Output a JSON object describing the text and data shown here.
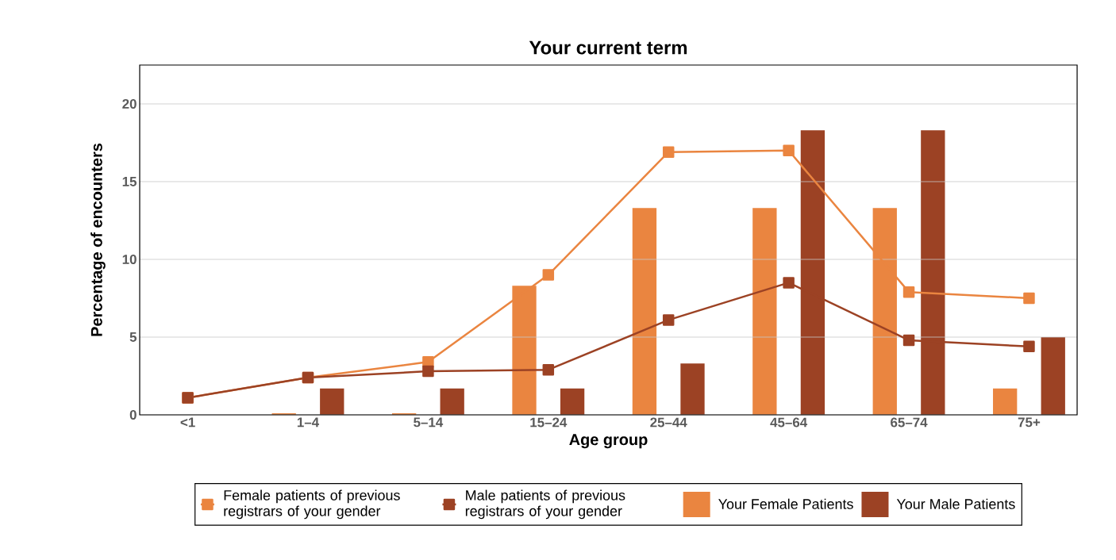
{
  "chart_data": {
    "type": "bar",
    "title": "Your current term",
    "xlabel": "Age group",
    "ylabel": "Percentage of encounters",
    "categories": [
      "<1",
      "1–4",
      "5–14",
      "15–24",
      "25–44",
      "45–64",
      "65–74",
      "75+"
    ],
    "series": [
      {
        "name": "Female patients of previous registrars of your gender",
        "type": "line",
        "color": "#ea8540",
        "values": [
          1.1,
          2.4,
          3.4,
          9.0,
          16.9,
          17.0,
          7.9,
          7.5
        ]
      },
      {
        "name": "Male patients of previous registrars of your gender",
        "type": "line",
        "color": "#9c4224",
        "values": [
          1.1,
          2.4,
          2.8,
          2.9,
          6.1,
          8.5,
          4.8,
          4.4
        ]
      },
      {
        "name": "Your Female Patients",
        "color": "#ea8540",
        "values": [
          0,
          0.1,
          0.1,
          8.3,
          13.3,
          13.3,
          13.3,
          1.7
        ]
      },
      {
        "name": "Your Male Patients",
        "color": "#9c4224",
        "values": [
          0,
          1.7,
          1.7,
          1.7,
          3.3,
          18.3,
          18.3,
          5.0
        ]
      }
    ],
    "ylim": [
      0,
      22.5
    ],
    "yticks": [
      0,
      5,
      10,
      15,
      20
    ],
    "grid": "y",
    "legend": "bottom",
    "marker": "square",
    "line_style": "solid"
  }
}
